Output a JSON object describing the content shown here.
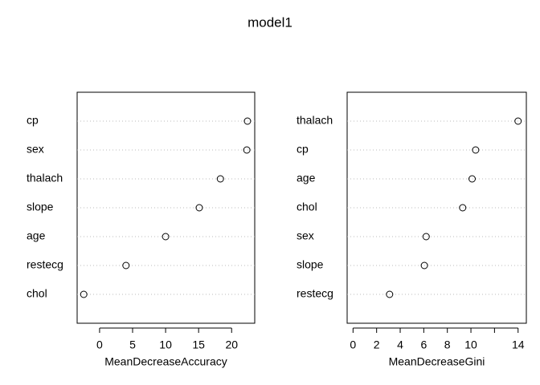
{
  "title": "model1",
  "chart_data": [
    {
      "type": "dot",
      "xlabel": "MeanDecreaseAccuracy",
      "categories": [
        "cp",
        "sex",
        "thalach",
        "slope",
        "age",
        "restecg",
        "chol"
      ],
      "values": [
        22.4,
        22.3,
        18.3,
        15.1,
        10.0,
        4.0,
        -2.4
      ],
      "xlim": [
        -3.4,
        23.5
      ],
      "xticks": [
        0,
        5,
        10,
        15,
        20
      ],
      "grid": true,
      "color": "#000000"
    },
    {
      "type": "dot",
      "xlabel": "MeanDecreaseGini",
      "categories": [
        "thalach",
        "cp",
        "age",
        "chol",
        "sex",
        "slope",
        "restecg"
      ],
      "values": [
        14.0,
        10.4,
        10.1,
        9.3,
        6.2,
        6.05,
        3.1
      ],
      "xlim": [
        -0.5,
        14.7
      ],
      "xticks": [
        0,
        2,
        4,
        6,
        8,
        10,
        {
          "value": 12,
          "label": null
        },
        14
      ],
      "grid": true,
      "color": "#000000"
    }
  ]
}
